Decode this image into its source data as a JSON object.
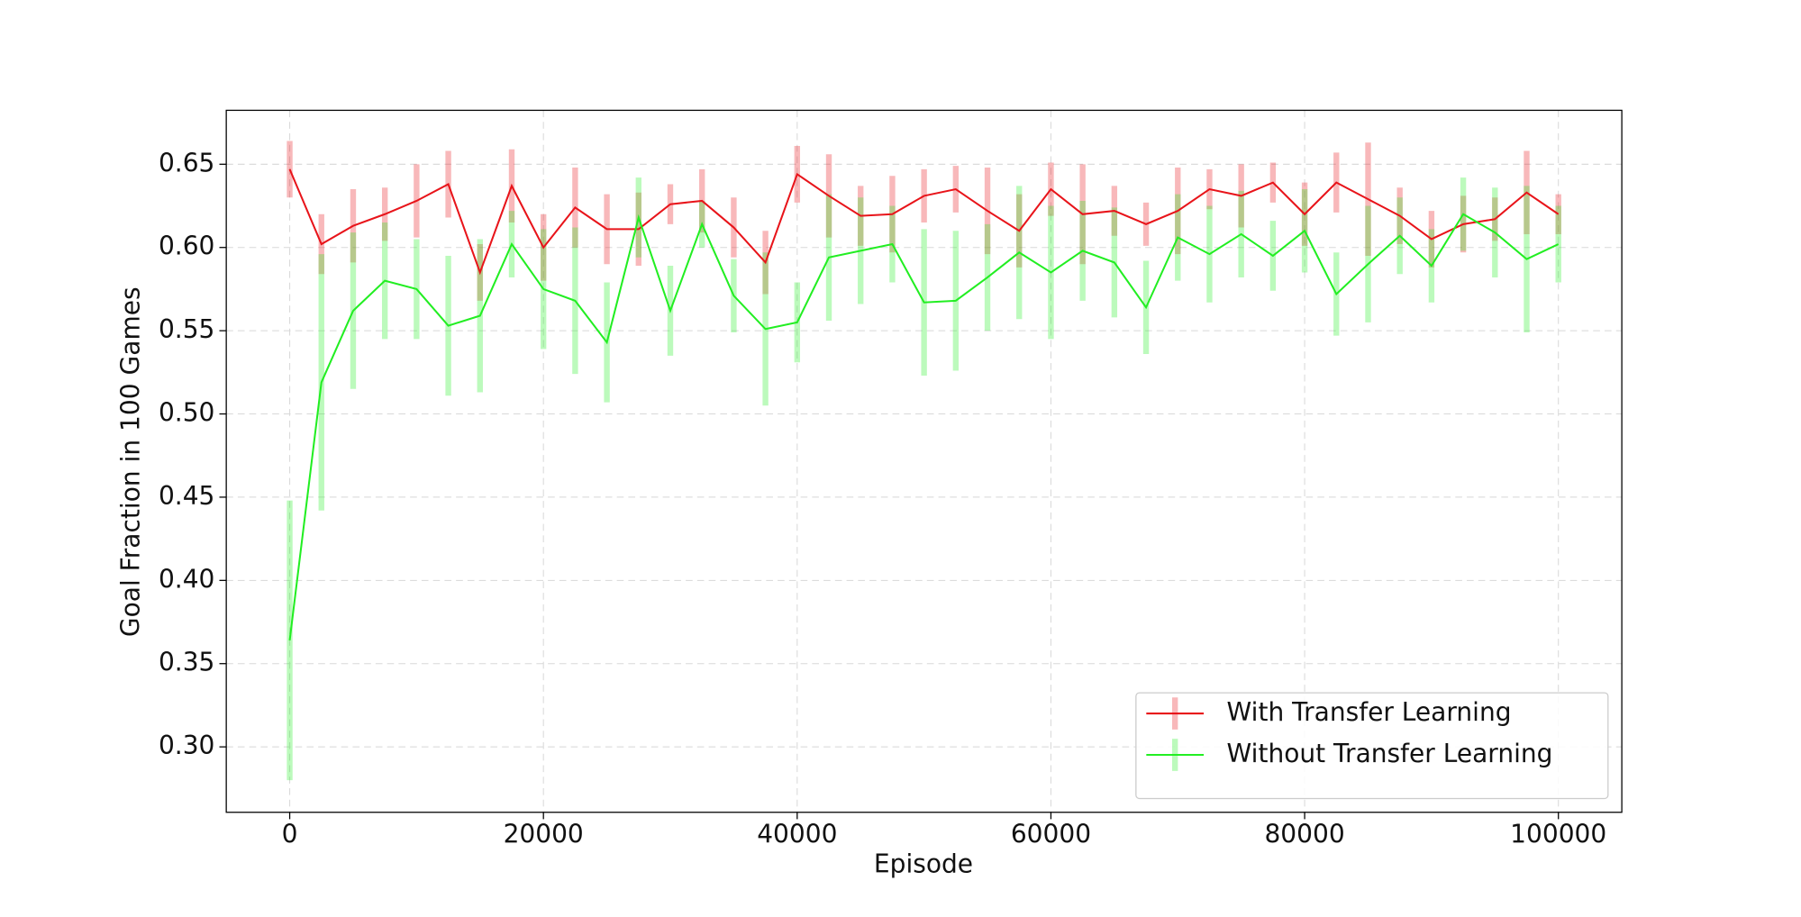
{
  "chart_data": {
    "type": "line",
    "xlabel": "Episode",
    "ylabel": "Goal Fraction in 100 Games",
    "x": [
      0,
      2500,
      5000,
      7500,
      10000,
      12500,
      15000,
      17500,
      20000,
      22500,
      25000,
      27500,
      30000,
      32500,
      35000,
      37500,
      40000,
      42500,
      45000,
      47500,
      50000,
      52500,
      55000,
      57500,
      60000,
      62500,
      65000,
      67500,
      70000,
      72500,
      75000,
      77500,
      80000,
      82500,
      85000,
      87500,
      90000,
      92500,
      95000,
      97500,
      100000
    ],
    "series": [
      {
        "name": "With Transfer Learning",
        "color": "#e8141a",
        "values": [
          0.647,
          0.602,
          0.613,
          0.62,
          0.628,
          0.638,
          0.585,
          0.637,
          0.6,
          0.624,
          0.611,
          0.611,
          0.626,
          0.628,
          0.612,
          0.591,
          0.644,
          0.631,
          0.619,
          0.62,
          0.631,
          0.635,
          0.622,
          0.61,
          0.635,
          0.62,
          0.622,
          0.614,
          0.622,
          0.635,
          0.631,
          0.639,
          0.62,
          0.639,
          0.629,
          0.619,
          0.605,
          0.614,
          0.617,
          0.633,
          0.62
        ],
        "errors": [
          0.017,
          0.018,
          0.022,
          0.016,
          0.022,
          0.02,
          0.017,
          0.022,
          0.02,
          0.024,
          0.021,
          0.022,
          0.012,
          0.019,
          0.018,
          0.019,
          0.017,
          0.025,
          0.018,
          0.023,
          0.016,
          0.014,
          0.026,
          0.022,
          0.016,
          0.03,
          0.015,
          0.013,
          0.026,
          0.012,
          0.019,
          0.012,
          0.019,
          0.018,
          0.034,
          0.017,
          0.017,
          0.017,
          0.013,
          0.025,
          0.012
        ]
      },
      {
        "name": "Without Transfer Learning",
        "color": "#22ee22",
        "values": [
          0.364,
          0.519,
          0.562,
          0.58,
          0.575,
          0.553,
          0.559,
          0.602,
          0.575,
          0.568,
          0.543,
          0.618,
          0.562,
          0.614,
          0.571,
          0.551,
          0.555,
          0.594,
          0.598,
          0.602,
          0.567,
          0.568,
          0.582,
          0.597,
          0.585,
          0.598,
          0.591,
          0.564,
          0.606,
          0.596,
          0.608,
          0.595,
          0.61,
          0.572,
          0.59,
          0.607,
          0.589,
          0.62,
          0.609,
          0.593,
          0.602
        ],
        "errors": [
          0.084,
          0.077,
          0.047,
          0.035,
          0.03,
          0.042,
          0.046,
          0.02,
          0.036,
          0.044,
          0.036,
          0.024,
          0.027,
          0.014,
          0.022,
          0.046,
          0.024,
          0.038,
          0.032,
          0.023,
          0.044,
          0.042,
          0.032,
          0.04,
          0.04,
          0.03,
          0.033,
          0.028,
          0.026,
          0.029,
          0.026,
          0.021,
          0.025,
          0.025,
          0.035,
          0.023,
          0.022,
          0.022,
          0.027,
          0.044,
          0.023
        ]
      }
    ],
    "xlim": [
      -5000,
      105000
    ],
    "ylim": [
      0.2607,
      0.6824
    ],
    "xticks": [
      0,
      20000,
      40000,
      60000,
      80000,
      100000
    ],
    "yticks": [
      {
        "value": 0.3,
        "label": "0.30"
      },
      0.35,
      {
        "value": 0.4,
        "label": "0.40"
      },
      0.45,
      {
        "value": 0.5,
        "label": "0.50"
      },
      0.55,
      {
        "value": 0.6,
        "label": "0.60"
      },
      0.65
    ],
    "grid": true,
    "legend": "lower right"
  }
}
